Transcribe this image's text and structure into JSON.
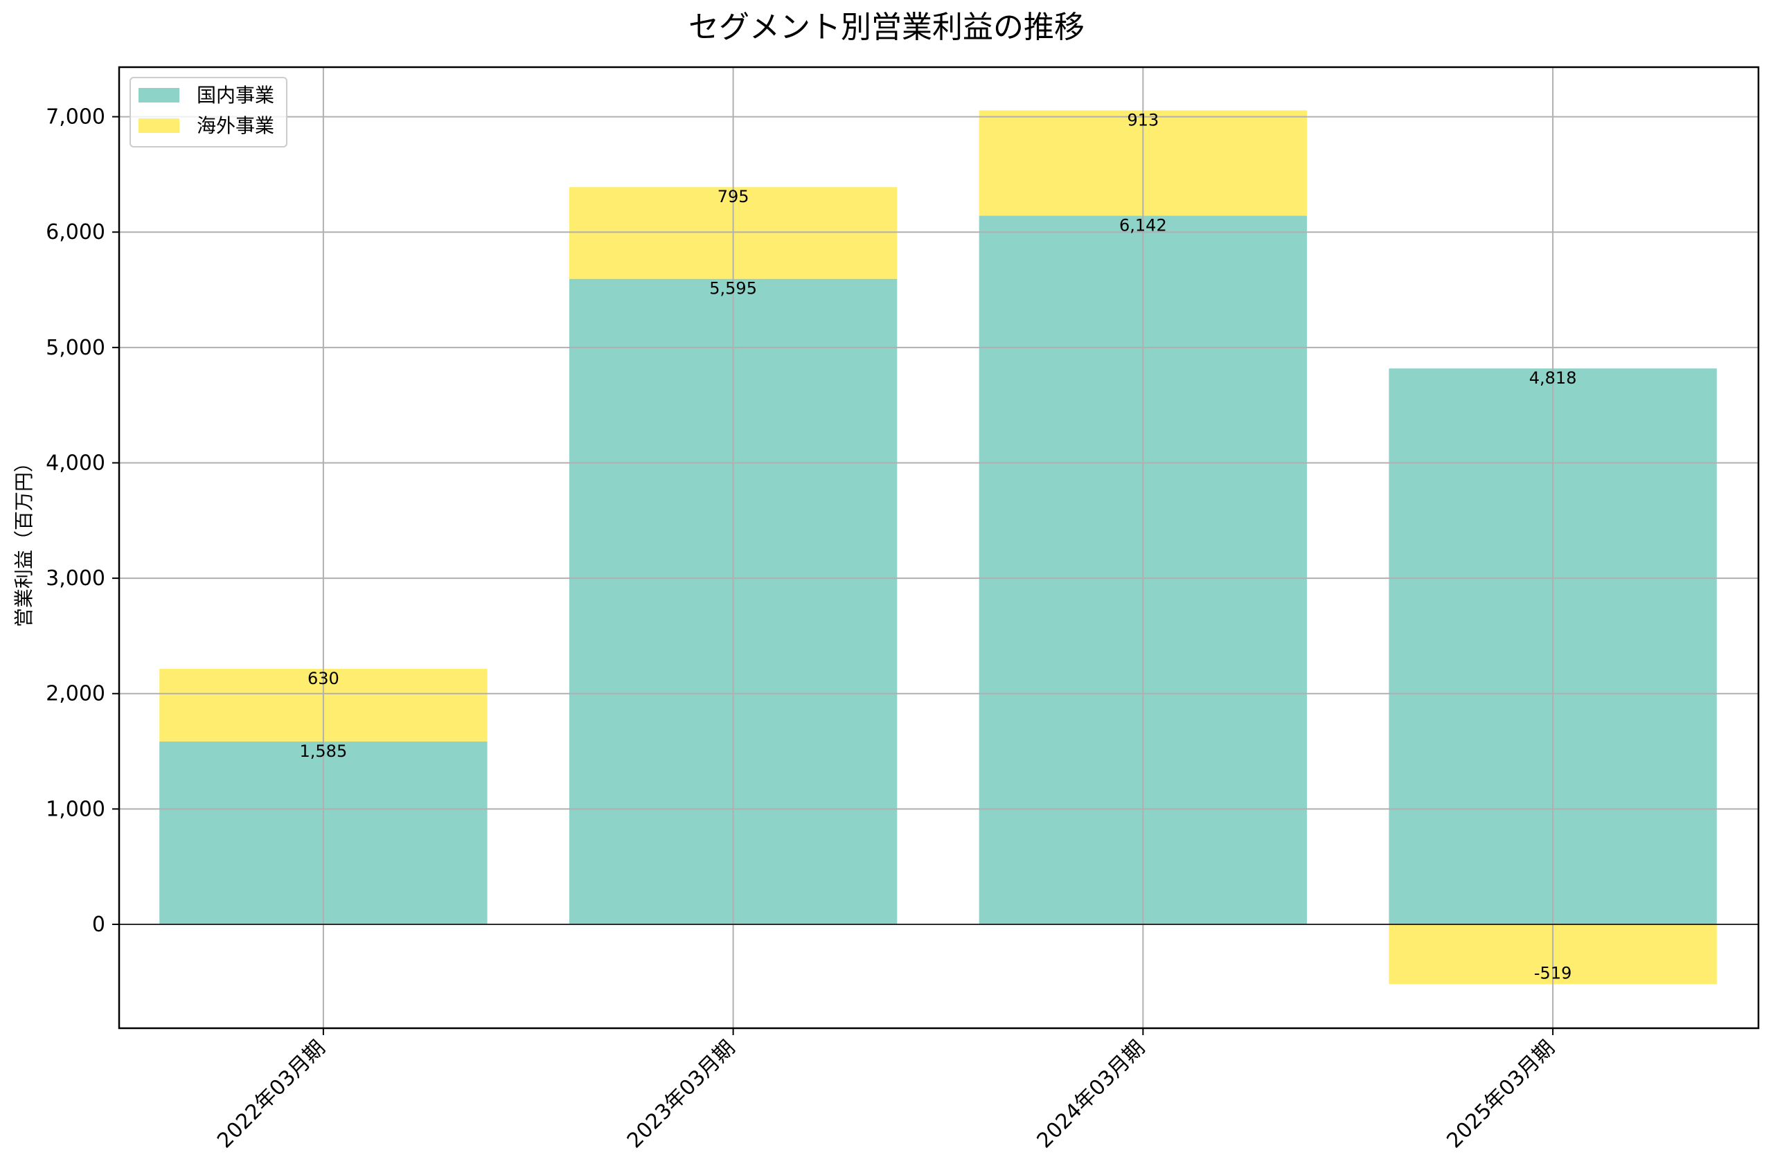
{
  "chart_data": {
    "type": "bar",
    "stacked": true,
    "title": "セグメント別営業利益の推移",
    "xlabel": "",
    "ylabel": "営業利益（百万円）",
    "categories": [
      "2022年03月期",
      "2023年03月期",
      "2024年03月期",
      "2025年03月期"
    ],
    "series": [
      {
        "name": "国内事業",
        "color": "#8dd3c7",
        "values": [
          1585,
          5595,
          6142,
          4818
        ],
        "labels": [
          "1,585",
          "5,595",
          "6,142",
          "4,818"
        ]
      },
      {
        "name": "海外事業",
        "color": "#ffed6f",
        "values": [
          630,
          795,
          913,
          -519
        ],
        "labels": [
          "630",
          "795",
          "913",
          "-519"
        ]
      }
    ],
    "ylim": [
      -900,
      7430
    ],
    "yticks": [
      0,
      1000,
      2000,
      3000,
      4000,
      5000,
      6000,
      7000
    ],
    "ytick_labels": [
      "0",
      "1,000",
      "2,000",
      "3,000",
      "4,000",
      "5,000",
      "6,000",
      "7,000"
    ],
    "grid": true,
    "legend_position": "upper left",
    "xtick_rotation": 45
  },
  "colors": {
    "grid": "#b0b0b0",
    "axis": "#000000",
    "legend_border": "#cccccc"
  }
}
